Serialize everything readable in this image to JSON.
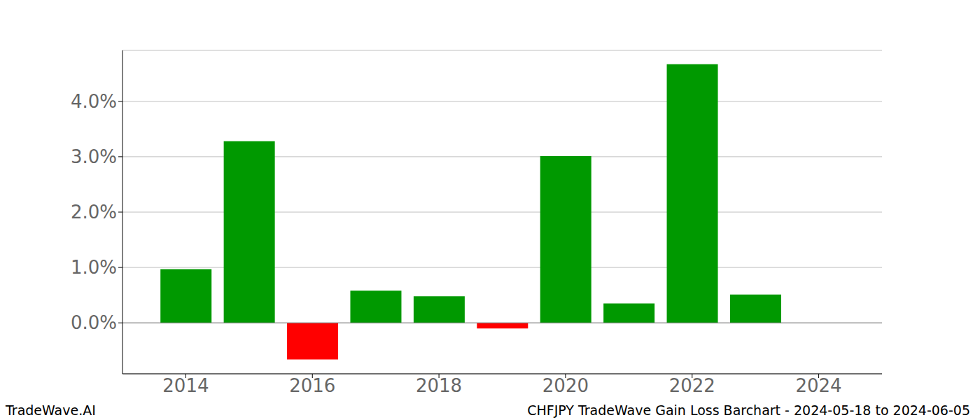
{
  "chart_data": {
    "type": "bar",
    "title": "CHFJPY TradeWave Gain Loss Barchart - 2024-05-18 to 2024-06-05",
    "source": "TradeWave.AI",
    "x": [
      2014,
      2015,
      2016,
      2017,
      2018,
      2019,
      2020,
      2021,
      2022,
      2023
    ],
    "values": [
      0.97,
      3.28,
      -0.66,
      0.58,
      0.48,
      -0.1,
      3.01,
      0.35,
      4.67,
      0.51
    ],
    "colors": [
      "#009900",
      "#009900",
      "#ff0000",
      "#009900",
      "#009900",
      "#ff0000",
      "#009900",
      "#009900",
      "#009900",
      "#009900"
    ],
    "xlim": [
      2013,
      2025
    ],
    "xticks": [
      2014,
      2016,
      2018,
      2020,
      2022,
      2024
    ],
    "ylim": [
      -0.92,
      4.92
    ],
    "yticks": [
      {
        "value": 0,
        "label": "0.0%"
      },
      {
        "value": 1,
        "label": "1.0%"
      },
      {
        "value": 2,
        "label": "2.0%"
      },
      {
        "value": 3,
        "label": "3.0%"
      },
      {
        "value": 4,
        "label": "4.0%"
      }
    ],
    "grid": true
  }
}
